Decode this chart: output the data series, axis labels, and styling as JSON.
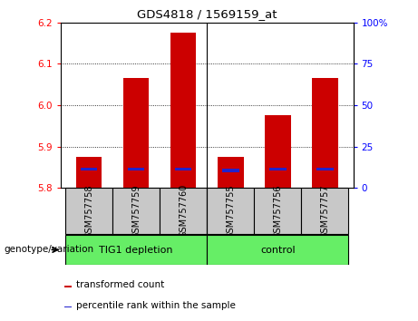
{
  "title": "GDS4818 / 1569159_at",
  "samples": [
    "GSM757758",
    "GSM757759",
    "GSM757760",
    "GSM757755",
    "GSM757756",
    "GSM757757"
  ],
  "red_values": [
    5.875,
    6.065,
    6.175,
    5.875,
    5.975,
    6.065
  ],
  "blue_values": [
    5.845,
    5.845,
    5.845,
    5.842,
    5.845,
    5.845
  ],
  "ylim_left": [
    5.8,
    6.2
  ],
  "yticks_left": [
    5.8,
    5.9,
    6.0,
    6.1,
    6.2
  ],
  "yticks_right": [
    0,
    25,
    50,
    75,
    100
  ],
  "ytick_labels_right": [
    "0",
    "25",
    "50",
    "75",
    "100%"
  ],
  "bar_color": "#CC0000",
  "blue_marker_color": "#2222CC",
  "bar_width": 0.55,
  "bg_color": "#C8C8C8",
  "plot_bg": "#FFFFFF",
  "green_color": "#66EE66",
  "genotype_label": "genotype/variation",
  "group1_label": "TIG1 depletion",
  "group2_label": "control",
  "legend_red": "transformed count",
  "legend_blue": "percentile rank within the sample"
}
